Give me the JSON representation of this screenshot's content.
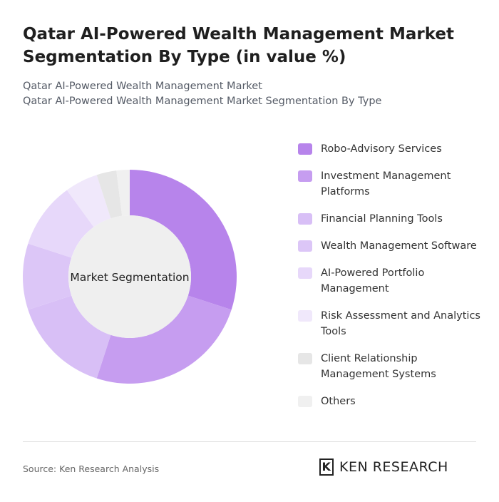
{
  "chart_data": {
    "type": "pie",
    "title": "Qatar AI-Powered Wealth Management Market Segmentation By Type (in value %)",
    "subtitle": "Qatar AI-Powered Wealth Management Market",
    "subtitle2": "Qatar AI-Powered Wealth Management Market Segmentation By Type",
    "center_label": "Market Segmentation",
    "categories": [
      "Robo-Advisory Services",
      "Investment Management Platforms",
      "Financial Planning Tools",
      "Wealth Management Software",
      "AI-Powered Portfolio Management",
      "Risk Assessment and Analytics Tools",
      "Client Relationship Management Systems",
      "Others"
    ],
    "values": [
      30,
      25,
      15,
      10,
      10,
      5,
      3,
      2
    ],
    "colors": [
      "#b784eb",
      "#c69df0",
      "#d8bff6",
      "#dcc6f7",
      "#e7d8fa",
      "#f0e8fb",
      "#e6e6e6",
      "#f0f0f0"
    ]
  },
  "source": "Source: Ken Research Analysis",
  "brand": "KEN RESEARCH"
}
